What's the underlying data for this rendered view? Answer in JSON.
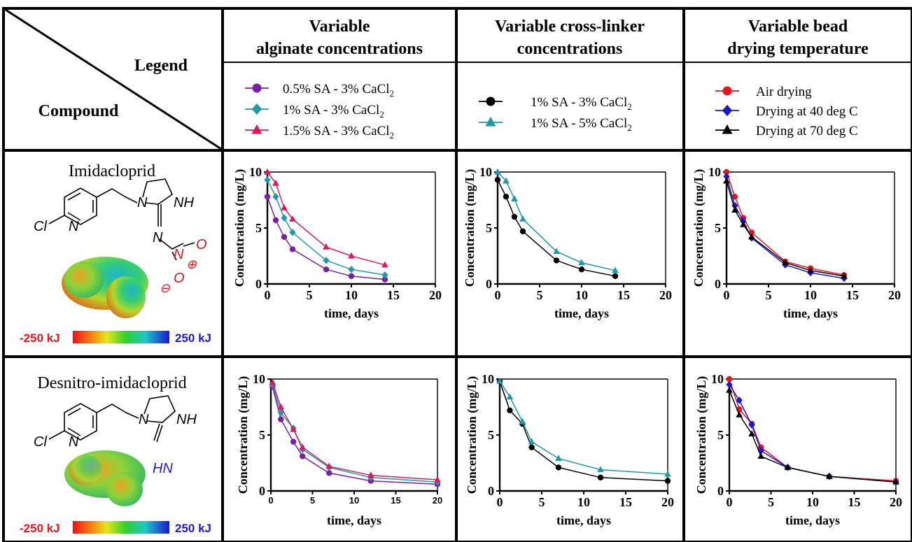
{
  "headers": {
    "legend": "Legend",
    "compound": "Compound",
    "col1": [
      "Variable",
      "alginate concentrations"
    ],
    "col2": [
      "Variable cross-linker",
      "concentrations"
    ],
    "col3": [
      "Variable bead",
      "drying temperature"
    ]
  },
  "legends": {
    "col1": [
      {
        "pre": "0.5% SA - 3% CaCl",
        "sub": "2",
        "marker": "circle",
        "color": "#7b1fa2"
      },
      {
        "pre": "1% SA - 3% CaCl",
        "sub": "2",
        "marker": "diamond",
        "color": "#1f9aa6"
      },
      {
        "pre": "1.5% SA - 3% CaCl",
        "sub": "2",
        "marker": "triangle",
        "color": "#d81b60"
      }
    ],
    "col2": [
      {
        "pre": "1% SA - 3% CaCl",
        "sub": "2",
        "marker": "circle",
        "color": "#000000"
      },
      {
        "pre": "1% SA - 5% CaCl",
        "sub": "2",
        "marker": "triangle",
        "color": "#1f9aa6"
      }
    ],
    "col3": [
      {
        "pre": "Air drying",
        "sub": "",
        "marker": "circle",
        "color": "#e8141b"
      },
      {
        "pre": "Drying at 40 deg C",
        "sub": "",
        "marker": "diamond",
        "color": "#1a1acd"
      },
      {
        "pre": "Drying at 70 deg C",
        "sub": "",
        "marker": "triangle",
        "color": "#000000"
      }
    ]
  },
  "compounds": [
    {
      "name": "Imidacloprid",
      "labels": {
        "cl": "Cl",
        "n1": "N",
        "n2": "N",
        "nh": "NH",
        "n3": "N",
        "n4": "N",
        "o1": "O",
        "o2": "O",
        "plus": "⊕",
        "minus": "⊖"
      },
      "scale": {
        "min": "-250 kJ",
        "max": "250 kJ"
      }
    },
    {
      "name": "Desnitro-imidacloprid",
      "labels": {
        "cl": "Cl",
        "n1": "N",
        "n2": "N",
        "nh": "NH",
        "hn": "HN"
      },
      "scale": {
        "min": "-250 kJ",
        "max": "250 kJ"
      }
    }
  ],
  "chart_data": [
    {
      "type": "line",
      "row": 1,
      "col": 1,
      "xlabel": "time, days",
      "ylabel": "Concentration (mg/L)",
      "xlim": [
        0,
        20
      ],
      "ylim": [
        0,
        10
      ],
      "xticks": [
        0,
        5,
        10,
        15,
        20
      ],
      "yticks": [
        0,
        5,
        10
      ],
      "series": [
        {
          "name": "0.5% SA - 3% CaCl2",
          "marker": "circle",
          "color": "#7b1fa2",
          "x": [
            0,
            1,
            2,
            3,
            7,
            10,
            14
          ],
          "y": [
            7.8,
            5.7,
            4.2,
            3.1,
            1.3,
            0.7,
            0.4
          ]
        },
        {
          "name": "1% SA - 3% CaCl2",
          "marker": "diamond",
          "color": "#1f9aa6",
          "x": [
            0,
            1,
            2,
            3,
            7,
            10,
            14
          ],
          "y": [
            9.3,
            7.8,
            5.9,
            4.6,
            2.1,
            1.3,
            0.8
          ]
        },
        {
          "name": "1.5% SA - 3% CaCl2",
          "marker": "triangle",
          "color": "#d81b60",
          "x": [
            0,
            1,
            2,
            3,
            7,
            10,
            14
          ],
          "y": [
            10.0,
            9.0,
            6.8,
            5.8,
            3.3,
            2.5,
            1.7
          ]
        }
      ]
    },
    {
      "type": "line",
      "row": 1,
      "col": 2,
      "xlabel": "time, days",
      "ylabel": "Concentration (mg/L)",
      "xlim": [
        0,
        20
      ],
      "ylim": [
        0,
        10
      ],
      "xticks": [
        0,
        5,
        10,
        15,
        20
      ],
      "yticks": [
        0,
        5,
        10
      ],
      "series": [
        {
          "name": "1% SA - 3% CaCl2",
          "marker": "circle",
          "color": "#000000",
          "x": [
            0,
            1,
            2,
            3,
            7,
            10,
            14
          ],
          "y": [
            9.3,
            7.8,
            6.0,
            4.7,
            2.1,
            1.3,
            0.7
          ]
        },
        {
          "name": "1% SA - 5% CaCl2",
          "marker": "triangle",
          "color": "#1f9aa6",
          "x": [
            0,
            1,
            2,
            3,
            7,
            10,
            14
          ],
          "y": [
            10.0,
            9.2,
            7.6,
            5.8,
            2.9,
            1.9,
            1.2
          ]
        }
      ]
    },
    {
      "type": "line",
      "row": 1,
      "col": 3,
      "xlabel": "time, days",
      "ylabel": "Concentration (mg/L)",
      "xlim": [
        0,
        20
      ],
      "ylim": [
        0,
        10
      ],
      "xticks": [
        0,
        5,
        10,
        15,
        20
      ],
      "yticks": [
        0,
        5,
        10
      ],
      "series": [
        {
          "name": "Air drying",
          "marker": "circle",
          "color": "#e8141b",
          "x": [
            0,
            1,
            2,
            3,
            7,
            10,
            14
          ],
          "y": [
            10.0,
            7.8,
            5.9,
            4.6,
            2.0,
            1.4,
            0.8
          ]
        },
        {
          "name": "Drying at 40 deg C",
          "marker": "diamond",
          "color": "#1a1acd",
          "x": [
            0,
            1,
            2,
            3,
            7,
            10,
            14
          ],
          "y": [
            9.6,
            7.0,
            5.6,
            4.1,
            1.7,
            1.0,
            0.5
          ]
        },
        {
          "name": "Drying at 70 deg C",
          "marker": "triangle",
          "color": "#000000",
          "x": [
            0,
            1,
            2,
            3,
            7,
            10,
            14
          ],
          "y": [
            9.2,
            6.6,
            5.3,
            4.2,
            1.9,
            1.2,
            0.7
          ]
        }
      ]
    },
    {
      "type": "line",
      "row": 2,
      "col": 1,
      "xlabel": "time, days",
      "ylabel": "Concentration (mg/L)",
      "xlim": [
        0,
        20
      ],
      "ylim": [
        0,
        10
      ],
      "xticks": [
        0,
        5,
        10,
        15,
        20
      ],
      "yticks": [
        0,
        5,
        10
      ],
      "series": [
        {
          "name": "0.5% SA - 3% CaCl2",
          "marker": "circle",
          "color": "#7b1fa2",
          "x": [
            0.2,
            1.2,
            2.7,
            3.8,
            7,
            12,
            20
          ],
          "y": [
            9.3,
            6.4,
            4.4,
            3.1,
            1.6,
            0.9,
            0.6
          ]
        },
        {
          "name": "1% SA - 3% CaCl2",
          "marker": "diamond",
          "color": "#1f9aa6",
          "x": [
            0.2,
            1.2,
            2.7,
            3.8,
            7,
            12,
            20
          ],
          "y": [
            9.5,
            7.0,
            5.6,
            3.7,
            2.1,
            1.2,
            0.8
          ]
        },
        {
          "name": "1.5% SA - 3% CaCl2",
          "marker": "triangle",
          "color": "#d81b60",
          "x": [
            0.2,
            1.2,
            2.7,
            3.8,
            7,
            12,
            20
          ],
          "y": [
            9.7,
            7.5,
            5.5,
            3.9,
            2.2,
            1.4,
            1.0
          ]
        }
      ]
    },
    {
      "type": "line",
      "row": 2,
      "col": 2,
      "xlabel": "time, days",
      "ylabel": "Concentration (mg/L)",
      "xlim": [
        0,
        20
      ],
      "ylim": [
        0,
        10
      ],
      "xticks": [
        0,
        5,
        10,
        15,
        20
      ],
      "yticks": [
        0,
        5,
        10
      ],
      "series": [
        {
          "name": "1% SA - 3% CaCl2",
          "marker": "circle",
          "color": "#000000",
          "x": [
            0,
            1.2,
            2.7,
            3.8,
            7,
            12,
            20
          ],
          "y": [
            9.8,
            7.2,
            6.0,
            3.9,
            2.1,
            1.2,
            0.9
          ]
        },
        {
          "name": "1% SA - 5% CaCl2",
          "marker": "triangle",
          "color": "#1f9aa6",
          "x": [
            0,
            1.2,
            2.7,
            3.8,
            7,
            12,
            20
          ],
          "y": [
            9.8,
            8.4,
            6.2,
            4.4,
            2.9,
            1.9,
            1.5
          ]
        }
      ]
    },
    {
      "type": "line",
      "row": 2,
      "col": 3,
      "xlabel": "time, days",
      "ylabel": "Concentration (mg/L)",
      "xlim": [
        0,
        20
      ],
      "ylim": [
        0,
        10
      ],
      "xticks": [
        0,
        5,
        10,
        15,
        20
      ],
      "yticks": [
        0,
        5,
        10
      ],
      "series": [
        {
          "name": "Air drying",
          "marker": "circle",
          "color": "#e8141b",
          "x": [
            0,
            1.2,
            2.7,
            3.8,
            7,
            12,
            20
          ],
          "y": [
            10.0,
            7.3,
            6.0,
            3.9,
            2.1,
            1.3,
            0.9
          ]
        },
        {
          "name": "Drying at 40 deg C",
          "marker": "diamond",
          "color": "#1a1acd",
          "x": [
            0,
            1.2,
            2.7,
            3.8,
            7,
            12,
            20
          ],
          "y": [
            9.5,
            8.1,
            5.9,
            3.6,
            2.1,
            1.3,
            0.8
          ]
        },
        {
          "name": "Drying at 70 deg C",
          "marker": "triangle",
          "color": "#000000",
          "x": [
            0,
            1.2,
            2.7,
            3.8,
            7,
            12,
            20
          ],
          "y": [
            9.0,
            6.8,
            5.1,
            3.1,
            2.1,
            1.3,
            0.8
          ]
        }
      ]
    }
  ]
}
